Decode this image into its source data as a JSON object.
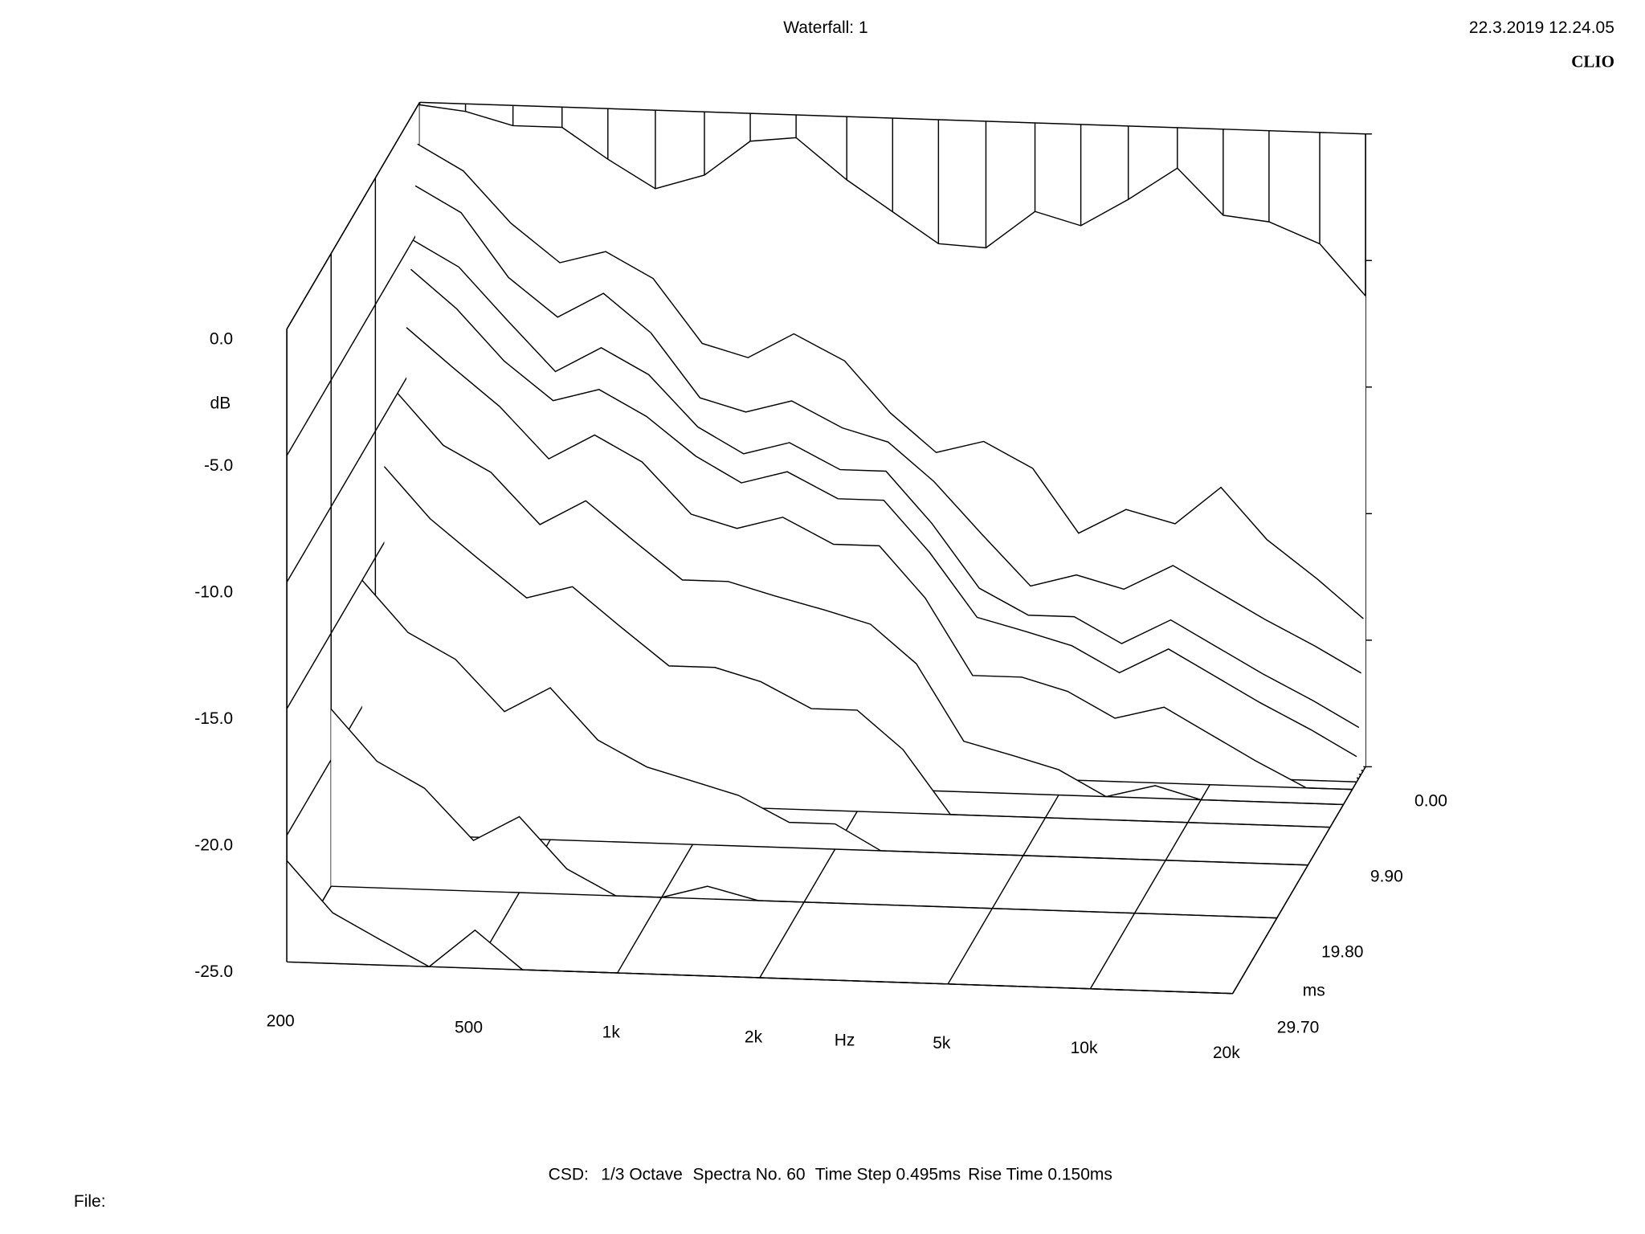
{
  "chart_data": {
    "type": "waterfall",
    "title": "Waterfall: 1",
    "timestamp": "22.3.2019 12.24.05",
    "brand": "CLIO",
    "x_label": "Hz",
    "y_label": "dB",
    "z_label": "ms",
    "settings": [
      "CSD:",
      "1/3 Octave",
      "Spectra No. 60",
      "Time Step 0.495ms",
      "Rise Time 0.150ms"
    ],
    "file_label": "File:",
    "color": "#000000",
    "xscale": "log",
    "xlim": [
      200,
      20000
    ],
    "xticks": [
      200,
      500,
      {
        "value": 1000,
        "label": "1k"
      },
      {
        "value": 2000,
        "label": "2k"
      },
      {
        "value": 5000,
        "label": "5k"
      },
      {
        "value": 10000,
        "label": "10k"
      },
      {
        "value": 20000,
        "label": "20k"
      }
    ],
    "ylim": [
      -25,
      0
    ],
    "yticks": [
      {
        "value": 0,
        "label": "0.0"
      },
      {
        "value": -5,
        "label": "-5.0"
      },
      {
        "value": -10,
        "label": "-10.0"
      },
      {
        "value": -15,
        "label": "-15.0"
      },
      {
        "value": -20,
        "label": "-20.0"
      },
      {
        "value": -25,
        "label": "-25.0"
      }
    ],
    "zlim": [
      0,
      29.7
    ],
    "zticks": [
      {
        "value": 0,
        "label": "0.00"
      },
      {
        "value": 9.9,
        "label": "9.90"
      },
      {
        "value": 19.8,
        "label": "19.80"
      },
      {
        "value": 29.7,
        "label": "29.70"
      }
    ],
    "x": [
      200,
      250,
      315,
      400,
      500,
      630,
      800,
      1000,
      1250,
      1600,
      2000,
      2500,
      3150,
      4000,
      5000,
      6300,
      8000,
      10000,
      12500,
      16000,
      20000
    ],
    "slices": [
      {
        "time": 0,
        "values": [
          -0.1,
          -0.3,
          -0.8,
          -0.8,
          -2.0,
          -3.1,
          -2.5,
          -1.1,
          -0.9,
          -2.5,
          -3.7,
          -4.9,
          -5.0,
          -3.5,
          -4.0,
          -2.9,
          -1.6,
          -3.4,
          -3.6,
          -4.4,
          -6.4
        ]
      },
      {
        "time": 0.495,
        "values": [
          -1.5,
          -2.5,
          -4.5,
          -6.0,
          -5.5,
          -6.5,
          -9.0,
          -9.5,
          -8.5,
          -9.5,
          -11.5,
          -13.0,
          -12.5,
          -13.5,
          -16,
          -15,
          -15.5,
          -14,
          -16,
          -17.5,
          -19
        ]
      },
      {
        "time": 0.99,
        "values": [
          -3,
          -4,
          -6.5,
          -8,
          -7,
          -8.5,
          -11,
          -11.5,
          -11,
          -12,
          -12.5,
          -14,
          -16,
          -18,
          -17.5,
          -18,
          -17,
          -18,
          -19,
          -20,
          -21
        ]
      },
      {
        "time": 1.485,
        "values": [
          -5,
          -6,
          -8,
          -10,
          -9,
          -10,
          -12,
          -13,
          -12.5,
          -13.5,
          -13.5,
          -15.5,
          -18,
          -19,
          -19,
          -20,
          -19,
          -20,
          -21,
          -22,
          -23
        ]
      },
      {
        "time": 1.98,
        "values": [
          -6,
          -7.5,
          -9.5,
          -11,
          -10.5,
          -11.5,
          -13,
          -14,
          -13.5,
          -14.5,
          -14.5,
          -16.5,
          -19,
          -19.5,
          -20,
          -21,
          -20,
          -21,
          -22,
          -23,
          -24
        ]
      },
      {
        "time": 2.97,
        "values": [
          -8,
          -9.5,
          -11,
          -13,
          -12,
          -13,
          -15,
          -15.5,
          -15,
          -16,
          -16,
          -18,
          -21,
          -21,
          -21.5,
          -22.5,
          -22,
          -23,
          -24,
          -25,
          -25
        ]
      },
      {
        "time": 4.95,
        "values": [
          -10,
          -12,
          -13,
          -15,
          -14,
          -15.5,
          -17,
          -17,
          -17.5,
          -18,
          -18.5,
          -20,
          -23,
          -23.5,
          -24,
          -25,
          -24.5,
          -25,
          -25,
          -25,
          -25
        ]
      },
      {
        "time": 7.92,
        "values": [
          -12,
          -14,
          -15.5,
          -17,
          -16.5,
          -18,
          -19.5,
          -19.5,
          -20,
          -21,
          -21,
          -22.5,
          -25,
          -25,
          -25,
          -25,
          -25,
          -25,
          -25,
          -25,
          -25
        ]
      },
      {
        "time": 12.87,
        "values": [
          -15,
          -17,
          -18,
          -20,
          -19,
          -21,
          -22,
          -22.5,
          -23,
          -24,
          -24,
          -25,
          -25,
          -25,
          -25,
          -25,
          -25,
          -25,
          -25,
          -25,
          -25
        ]
      },
      {
        "time": 19.8,
        "values": [
          -18,
          -20,
          -21,
          -23,
          -22,
          -24,
          -25,
          -25,
          -24.5,
          -25,
          -25,
          -25,
          -25,
          -25,
          -25,
          -25,
          -25,
          -25,
          -25,
          -25,
          -25
        ]
      },
      {
        "time": 29.7,
        "values": [
          -21,
          -23,
          -24,
          -25,
          -23.5,
          -25,
          -25,
          -25,
          -25,
          -25,
          -25,
          -25,
          -25,
          -25,
          -25,
          -25,
          -25,
          -25,
          -25,
          -25,
          -25
        ]
      }
    ]
  }
}
